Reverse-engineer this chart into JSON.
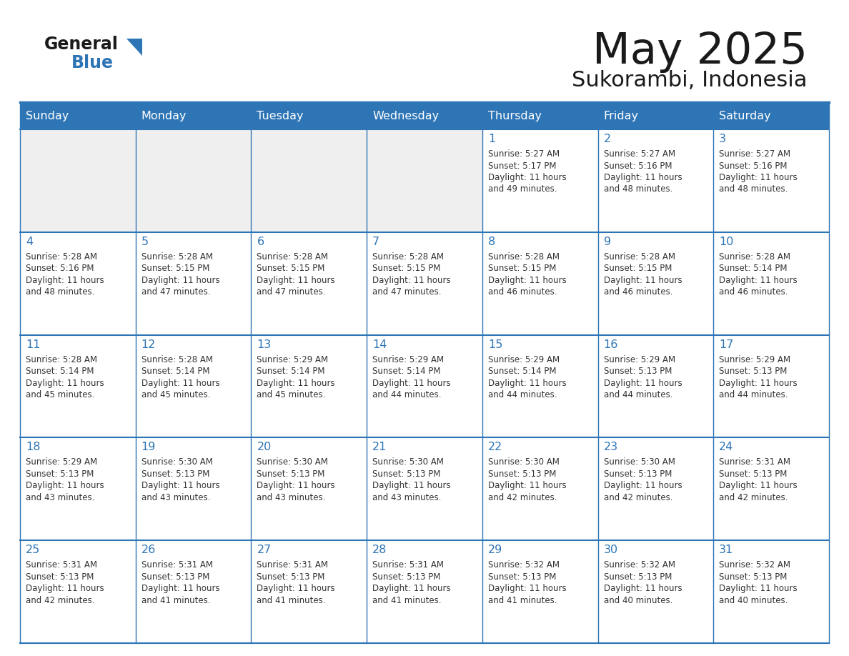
{
  "title": "May 2025",
  "subtitle": "Sukorambi, Indonesia",
  "header_color": "#2E75B6",
  "header_text_color": "#FFFFFF",
  "cell_bg_color": "#FFFFFF",
  "alt_cell_bg_color": "#EFEFEF",
  "day_number_color": "#2E75B6",
  "text_color": "#333333",
  "grid_color": "#2E75B6",
  "days_of_week": [
    "Sunday",
    "Monday",
    "Tuesday",
    "Wednesday",
    "Thursday",
    "Friday",
    "Saturday"
  ],
  "weeks": [
    {
      "days": [
        {
          "date": "",
          "sunrise": "",
          "sunset": "",
          "daylight_hours": "",
          "daylight_mins": ""
        },
        {
          "date": "",
          "sunrise": "",
          "sunset": "",
          "daylight_hours": "",
          "daylight_mins": ""
        },
        {
          "date": "",
          "sunrise": "",
          "sunset": "",
          "daylight_hours": "",
          "daylight_mins": ""
        },
        {
          "date": "",
          "sunrise": "",
          "sunset": "",
          "daylight_hours": "",
          "daylight_mins": ""
        },
        {
          "date": "1",
          "sunrise": "5:27 AM",
          "sunset": "5:17 PM",
          "daylight_hours": "11 hours",
          "daylight_mins": "and 49 minutes."
        },
        {
          "date": "2",
          "sunrise": "5:27 AM",
          "sunset": "5:16 PM",
          "daylight_hours": "11 hours",
          "daylight_mins": "and 48 minutes."
        },
        {
          "date": "3",
          "sunrise": "5:27 AM",
          "sunset": "5:16 PM",
          "daylight_hours": "11 hours",
          "daylight_mins": "and 48 minutes."
        }
      ]
    },
    {
      "days": [
        {
          "date": "4",
          "sunrise": "5:28 AM",
          "sunset": "5:16 PM",
          "daylight_hours": "11 hours",
          "daylight_mins": "and 48 minutes."
        },
        {
          "date": "5",
          "sunrise": "5:28 AM",
          "sunset": "5:15 PM",
          "daylight_hours": "11 hours",
          "daylight_mins": "and 47 minutes."
        },
        {
          "date": "6",
          "sunrise": "5:28 AM",
          "sunset": "5:15 PM",
          "daylight_hours": "11 hours",
          "daylight_mins": "and 47 minutes."
        },
        {
          "date": "7",
          "sunrise": "5:28 AM",
          "sunset": "5:15 PM",
          "daylight_hours": "11 hours",
          "daylight_mins": "and 47 minutes."
        },
        {
          "date": "8",
          "sunrise": "5:28 AM",
          "sunset": "5:15 PM",
          "daylight_hours": "11 hours",
          "daylight_mins": "and 46 minutes."
        },
        {
          "date": "9",
          "sunrise": "5:28 AM",
          "sunset": "5:15 PM",
          "daylight_hours": "11 hours",
          "daylight_mins": "and 46 minutes."
        },
        {
          "date": "10",
          "sunrise": "5:28 AM",
          "sunset": "5:14 PM",
          "daylight_hours": "11 hours",
          "daylight_mins": "and 46 minutes."
        }
      ]
    },
    {
      "days": [
        {
          "date": "11",
          "sunrise": "5:28 AM",
          "sunset": "5:14 PM",
          "daylight_hours": "11 hours",
          "daylight_mins": "and 45 minutes."
        },
        {
          "date": "12",
          "sunrise": "5:28 AM",
          "sunset": "5:14 PM",
          "daylight_hours": "11 hours",
          "daylight_mins": "and 45 minutes."
        },
        {
          "date": "13",
          "sunrise": "5:29 AM",
          "sunset": "5:14 PM",
          "daylight_hours": "11 hours",
          "daylight_mins": "and 45 minutes."
        },
        {
          "date": "14",
          "sunrise": "5:29 AM",
          "sunset": "5:14 PM",
          "daylight_hours": "11 hours",
          "daylight_mins": "and 44 minutes."
        },
        {
          "date": "15",
          "sunrise": "5:29 AM",
          "sunset": "5:14 PM",
          "daylight_hours": "11 hours",
          "daylight_mins": "and 44 minutes."
        },
        {
          "date": "16",
          "sunrise": "5:29 AM",
          "sunset": "5:13 PM",
          "daylight_hours": "11 hours",
          "daylight_mins": "and 44 minutes."
        },
        {
          "date": "17",
          "sunrise": "5:29 AM",
          "sunset": "5:13 PM",
          "daylight_hours": "11 hours",
          "daylight_mins": "and 44 minutes."
        }
      ]
    },
    {
      "days": [
        {
          "date": "18",
          "sunrise": "5:29 AM",
          "sunset": "5:13 PM",
          "daylight_hours": "11 hours",
          "daylight_mins": "and 43 minutes."
        },
        {
          "date": "19",
          "sunrise": "5:30 AM",
          "sunset": "5:13 PM",
          "daylight_hours": "11 hours",
          "daylight_mins": "and 43 minutes."
        },
        {
          "date": "20",
          "sunrise": "5:30 AM",
          "sunset": "5:13 PM",
          "daylight_hours": "11 hours",
          "daylight_mins": "and 43 minutes."
        },
        {
          "date": "21",
          "sunrise": "5:30 AM",
          "sunset": "5:13 PM",
          "daylight_hours": "11 hours",
          "daylight_mins": "and 43 minutes."
        },
        {
          "date": "22",
          "sunrise": "5:30 AM",
          "sunset": "5:13 PM",
          "daylight_hours": "11 hours",
          "daylight_mins": "and 42 minutes."
        },
        {
          "date": "23",
          "sunrise": "5:30 AM",
          "sunset": "5:13 PM",
          "daylight_hours": "11 hours",
          "daylight_mins": "and 42 minutes."
        },
        {
          "date": "24",
          "sunrise": "5:31 AM",
          "sunset": "5:13 PM",
          "daylight_hours": "11 hours",
          "daylight_mins": "and 42 minutes."
        }
      ]
    },
    {
      "days": [
        {
          "date": "25",
          "sunrise": "5:31 AM",
          "sunset": "5:13 PM",
          "daylight_hours": "11 hours",
          "daylight_mins": "and 42 minutes."
        },
        {
          "date": "26",
          "sunrise": "5:31 AM",
          "sunset": "5:13 PM",
          "daylight_hours": "11 hours",
          "daylight_mins": "and 41 minutes."
        },
        {
          "date": "27",
          "sunrise": "5:31 AM",
          "sunset": "5:13 PM",
          "daylight_hours": "11 hours",
          "daylight_mins": "and 41 minutes."
        },
        {
          "date": "28",
          "sunrise": "5:31 AM",
          "sunset": "5:13 PM",
          "daylight_hours": "11 hours",
          "daylight_mins": "and 41 minutes."
        },
        {
          "date": "29",
          "sunrise": "5:32 AM",
          "sunset": "5:13 PM",
          "daylight_hours": "11 hours",
          "daylight_mins": "and 41 minutes."
        },
        {
          "date": "30",
          "sunrise": "5:32 AM",
          "sunset": "5:13 PM",
          "daylight_hours": "11 hours",
          "daylight_mins": "and 40 minutes."
        },
        {
          "date": "31",
          "sunrise": "5:32 AM",
          "sunset": "5:13 PM",
          "daylight_hours": "11 hours",
          "daylight_mins": "and 40 minutes."
        }
      ]
    }
  ],
  "logo_general_color": "#1a1a1a",
  "logo_blue_color": "#2E75B6",
  "logo_triangle_color": "#2E75B6"
}
